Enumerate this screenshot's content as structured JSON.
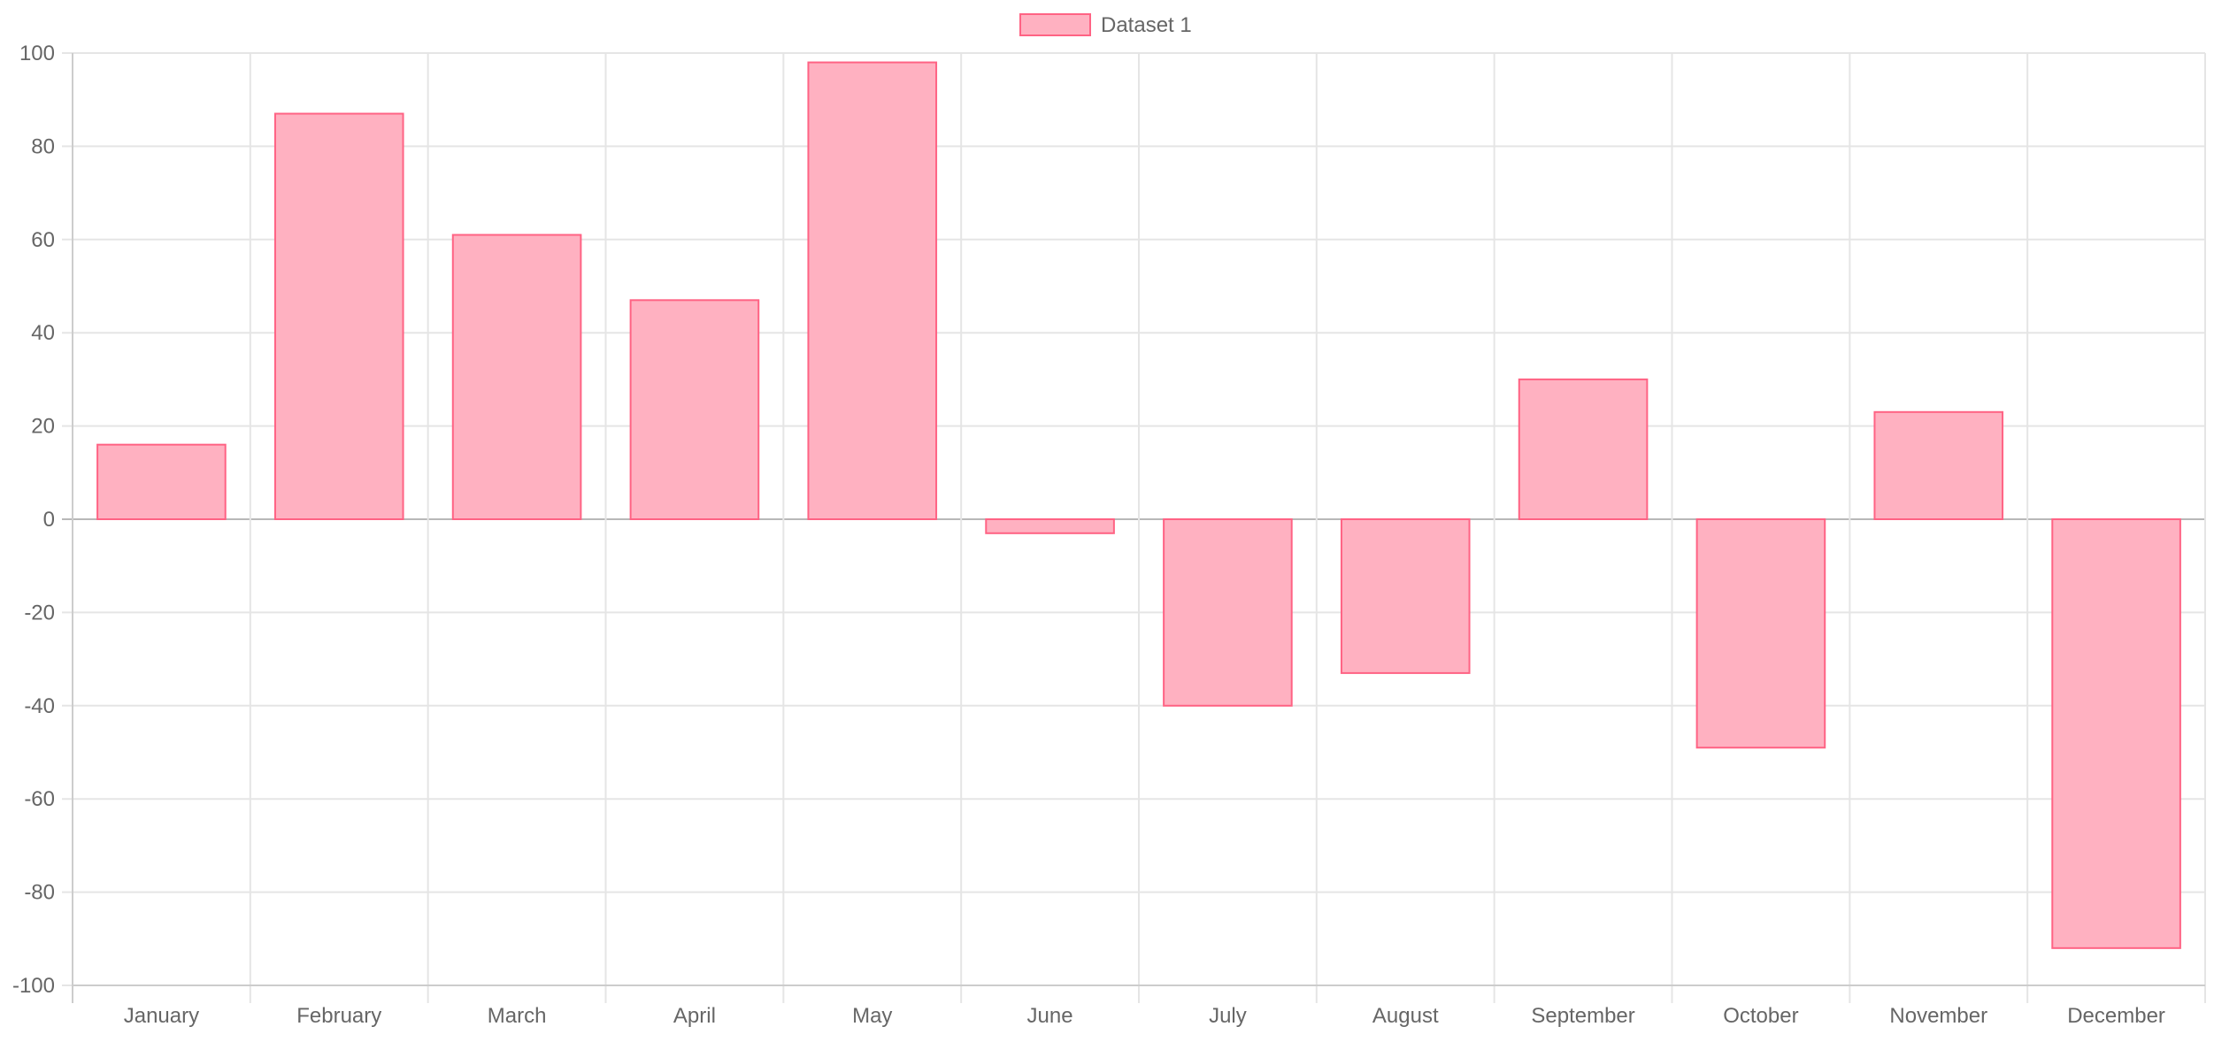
{
  "chart_data": {
    "type": "bar",
    "categories": [
      "January",
      "February",
      "March",
      "April",
      "May",
      "June",
      "July",
      "August",
      "September",
      "October",
      "November",
      "December"
    ],
    "series": [
      {
        "name": "Dataset 1",
        "values": [
          16,
          87,
          61,
          47,
          98,
          -3,
          -40,
          -33,
          30,
          -49,
          23,
          -92
        ]
      }
    ],
    "title": "",
    "xlabel": "",
    "ylabel": "",
    "ylim": [
      -100,
      100
    ],
    "yticks": [
      100,
      80,
      60,
      40,
      20,
      0,
      -20,
      -40,
      -60,
      -80,
      -100
    ],
    "grid": true,
    "legend_position": "top-center"
  },
  "colors": {
    "bar_fill": "#ffb1c1",
    "bar_border": "#ff6384",
    "grid": "#e5e5e5",
    "zero_line": "#b8b8b8",
    "axis": "#cccccc",
    "text": "#666666"
  }
}
